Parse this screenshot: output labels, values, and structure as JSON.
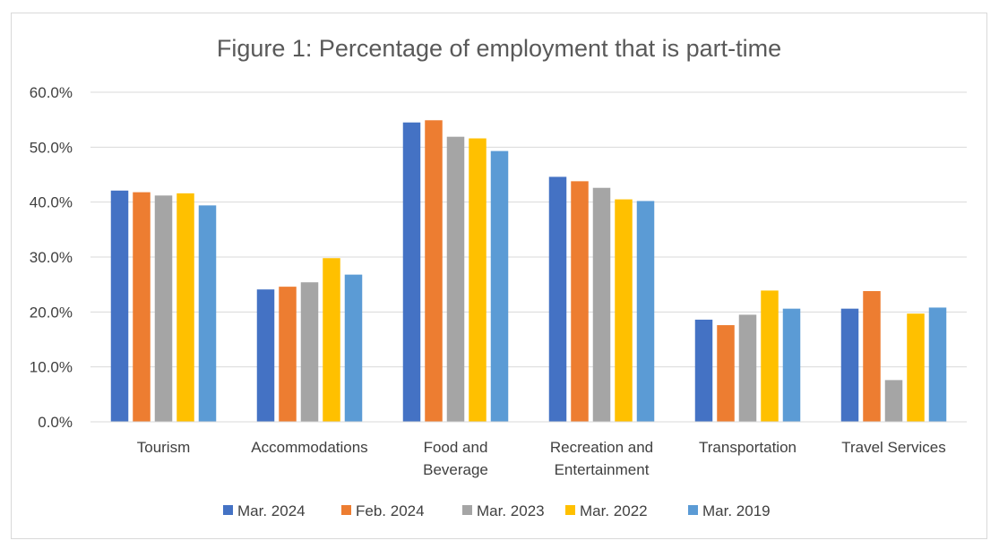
{
  "chart_data": {
    "type": "bar",
    "title": "Figure 1: Percentage of employment that is part-time",
    "xlabel": "",
    "ylabel": "",
    "ylim": [
      0,
      60
    ],
    "yticks": [
      "0.0%",
      "10.0%",
      "20.0%",
      "30.0%",
      "40.0%",
      "50.0%",
      "60.0%"
    ],
    "grid": true,
    "legend": "bottom",
    "categories": [
      [
        "Tourism"
      ],
      [
        "Accommodations"
      ],
      [
        "Food and",
        "Beverage"
      ],
      [
        "Recreation and",
        "Entertainment"
      ],
      [
        "Transportation"
      ],
      [
        "Travel Services"
      ]
    ],
    "series": [
      {
        "name": "Mar. 2024",
        "color": "#4472c4",
        "values": [
          42.1,
          24.1,
          54.5,
          44.6,
          18.6,
          20.6
        ]
      },
      {
        "name": "Feb. 2024",
        "color": "#ed7d31",
        "values": [
          41.8,
          24.6,
          54.9,
          43.8,
          17.6,
          23.8
        ]
      },
      {
        "name": "Mar. 2023",
        "color": "#a5a5a5",
        "values": [
          41.2,
          25.4,
          51.9,
          42.6,
          19.5,
          7.6
        ]
      },
      {
        "name": "Mar. 2022",
        "color": "#ffc000",
        "values": [
          41.6,
          29.8,
          51.6,
          40.5,
          23.9,
          19.7
        ]
      },
      {
        "name": "Mar. 2019",
        "color": "#5b9bd5",
        "values": [
          39.4,
          26.8,
          49.3,
          40.2,
          20.6,
          20.8
        ]
      }
    ]
  }
}
